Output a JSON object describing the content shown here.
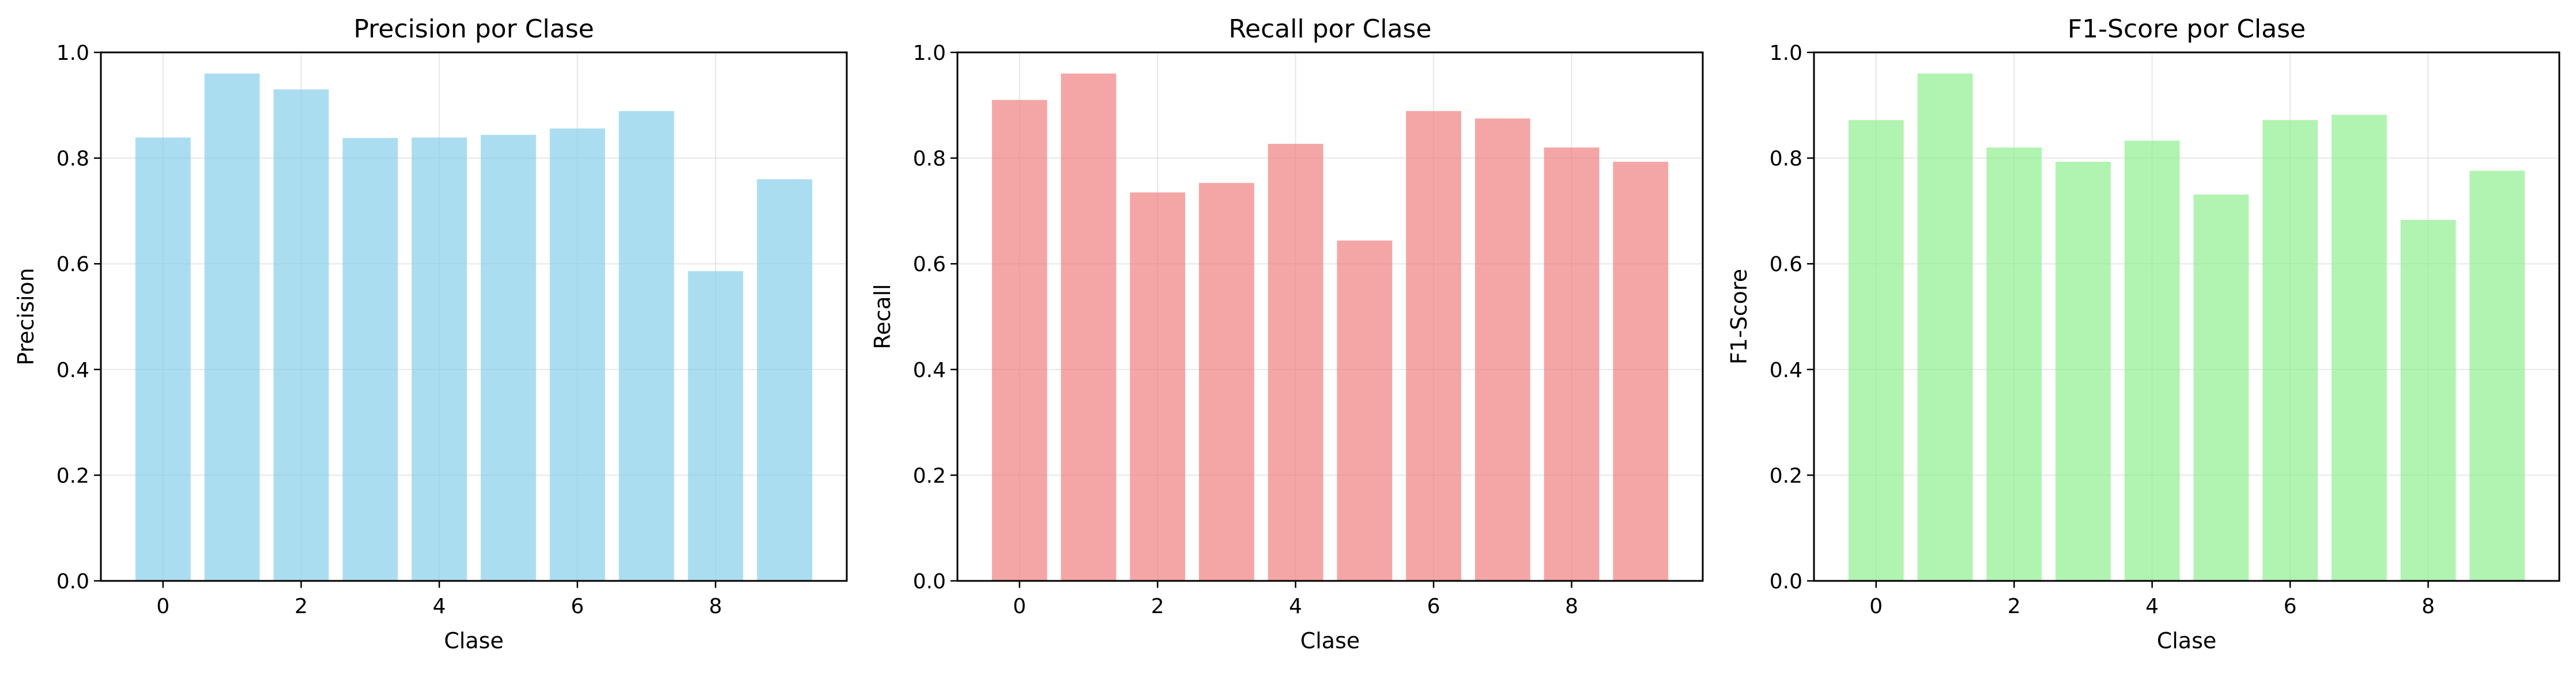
{
  "chart_data": [
    {
      "type": "bar",
      "title": "Precision por Clase",
      "xlabel": "Clase",
      "ylabel": "Precision",
      "categories": [
        0,
        1,
        2,
        3,
        4,
        5,
        6,
        7,
        8,
        9
      ],
      "values": [
        0.839,
        0.96,
        0.93,
        0.838,
        0.839,
        0.844,
        0.856,
        0.889,
        0.586,
        0.76
      ],
      "xticks": [
        "0",
        "2",
        "4",
        "6",
        "8"
      ],
      "yticks": [
        "0.0",
        "0.2",
        "0.4",
        "0.6",
        "0.8",
        "1.0"
      ],
      "xlim": [
        -0.9,
        9.9
      ],
      "ylim": [
        0,
        1
      ],
      "grid": true,
      "color": "#87ceeb"
    },
    {
      "type": "bar",
      "title": "Recall por Clase",
      "xlabel": "Clase",
      "ylabel": "Recall",
      "categories": [
        0,
        1,
        2,
        3,
        4,
        5,
        6,
        7,
        8,
        9
      ],
      "values": [
        0.91,
        0.96,
        0.735,
        0.753,
        0.827,
        0.644,
        0.889,
        0.875,
        0.82,
        0.793
      ],
      "xticks": [
        "0",
        "2",
        "4",
        "6",
        "8"
      ],
      "yticks": [
        "0.0",
        "0.2",
        "0.4",
        "0.6",
        "0.8",
        "1.0"
      ],
      "xlim": [
        -0.9,
        9.9
      ],
      "ylim": [
        0,
        1
      ],
      "grid": true,
      "color": "#f08080"
    },
    {
      "type": "bar",
      "title": "F1-Score por Clase",
      "xlabel": "Clase",
      "ylabel": "F1-Score",
      "categories": [
        0,
        1,
        2,
        3,
        4,
        5,
        6,
        7,
        8,
        9
      ],
      "values": [
        0.872,
        0.96,
        0.82,
        0.793,
        0.833,
        0.731,
        0.872,
        0.882,
        0.683,
        0.776
      ],
      "xticks": [
        "0",
        "2",
        "4",
        "6",
        "8"
      ],
      "yticks": [
        "0.0",
        "0.2",
        "0.4",
        "0.6",
        "0.8",
        "1.0"
      ],
      "xlim": [
        -0.9,
        9.9
      ],
      "ylim": [
        0,
        1
      ],
      "grid": true,
      "color": "#90ee90"
    }
  ]
}
